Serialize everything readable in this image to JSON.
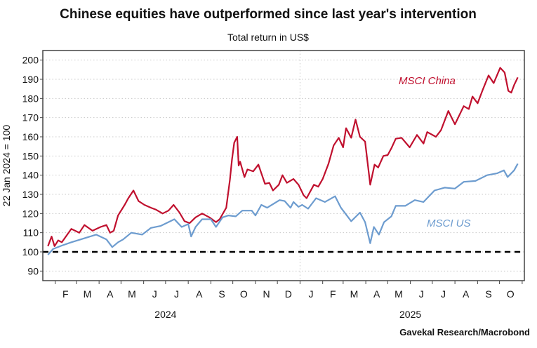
{
  "chart_data": {
    "type": "line",
    "title": "Chinese equities have outperformed since last year's intervention",
    "subtitle": "Total return in US$",
    "ylabel": "22 Jan 2024 = 100",
    "xlabel": "",
    "ylim": [
      85,
      205
    ],
    "xlim": [
      "2024-01-15",
      "2025-11-04"
    ],
    "yticks": [
      90,
      100,
      110,
      120,
      130,
      140,
      150,
      160,
      170,
      180,
      190,
      200
    ],
    "xtick_months": [
      {
        "label": "F",
        "date": "2024-02-15"
      },
      {
        "label": "M",
        "date": "2024-03-16"
      },
      {
        "label": "A",
        "date": "2024-04-16"
      },
      {
        "label": "M",
        "date": "2024-05-16"
      },
      {
        "label": "J",
        "date": "2024-06-16"
      },
      {
        "label": "J",
        "date": "2024-07-16"
      },
      {
        "label": "A",
        "date": "2024-08-16"
      },
      {
        "label": "S",
        "date": "2024-09-16"
      },
      {
        "label": "O",
        "date": "2024-10-16"
      },
      {
        "label": "N",
        "date": "2024-11-16"
      },
      {
        "label": "D",
        "date": "2024-12-16"
      },
      {
        "label": "J",
        "date": "2025-01-16"
      },
      {
        "label": "F",
        "date": "2025-02-15"
      },
      {
        "label": "M",
        "date": "2025-03-16"
      },
      {
        "label": "A",
        "date": "2025-04-16"
      },
      {
        "label": "M",
        "date": "2025-05-16"
      },
      {
        "label": "J",
        "date": "2025-06-16"
      },
      {
        "label": "J",
        "date": "2025-07-16"
      },
      {
        "label": "A",
        "date": "2025-08-16"
      },
      {
        "label": "S",
        "date": "2025-09-16"
      },
      {
        "label": "O",
        "date": "2025-10-16"
      }
    ],
    "month_boundaries": [
      "2024-02-01",
      "2024-03-01",
      "2024-04-01",
      "2024-05-01",
      "2024-06-01",
      "2024-07-01",
      "2024-08-01",
      "2024-09-01",
      "2024-10-01",
      "2024-11-01",
      "2024-12-01",
      "2025-01-01",
      "2025-02-01",
      "2025-03-01",
      "2025-04-01",
      "2025-05-01",
      "2025-06-01",
      "2025-07-01",
      "2025-08-01",
      "2025-09-01",
      "2025-10-01",
      "2025-11-01"
    ],
    "year_labels": [
      {
        "label": "2024",
        "date": "2024-07-01"
      },
      {
        "label": "2025",
        "date": "2025-06-01"
      }
    ],
    "year_divider": "2025-01-01",
    "reference_line": {
      "value": 100,
      "style": "dashed",
      "color": "#000000"
    },
    "grid": "horizontal-dotted",
    "legend": "inline-labels",
    "series": [
      {
        "name": "MSCI China",
        "color": "#c0102e",
        "label_position": "top-right",
        "points": [
          [
            "2024-01-22",
            103
          ],
          [
            "2024-01-27",
            108
          ],
          [
            "2024-01-31",
            103
          ],
          [
            "2024-02-05",
            106
          ],
          [
            "2024-02-10",
            105
          ],
          [
            "2024-02-23",
            112
          ],
          [
            "2024-03-05",
            110
          ],
          [
            "2024-03-12",
            114
          ],
          [
            "2024-03-23",
            111
          ],
          [
            "2024-04-03",
            113
          ],
          [
            "2024-04-11",
            114
          ],
          [
            "2024-04-16",
            110
          ],
          [
            "2024-04-21",
            111
          ],
          [
            "2024-04-27",
            119
          ],
          [
            "2024-05-06",
            124.5
          ],
          [
            "2024-05-11",
            128
          ],
          [
            "2024-05-18",
            132
          ],
          [
            "2024-05-25",
            126.5
          ],
          [
            "2024-06-02",
            124.5
          ],
          [
            "2024-06-11",
            123
          ],
          [
            "2024-06-18",
            122
          ],
          [
            "2024-06-27",
            120
          ],
          [
            "2024-07-05",
            121.5
          ],
          [
            "2024-07-12",
            124.5
          ],
          [
            "2024-07-20",
            120.5
          ],
          [
            "2024-07-27",
            116
          ],
          [
            "2024-08-03",
            115
          ],
          [
            "2024-08-11",
            118
          ],
          [
            "2024-08-20",
            120
          ],
          [
            "2024-08-30",
            118
          ],
          [
            "2024-09-08",
            115.5
          ],
          [
            "2024-09-13",
            117
          ],
          [
            "2024-09-22",
            123
          ],
          [
            "2024-09-27",
            137.5
          ],
          [
            "2024-09-30",
            148.5
          ],
          [
            "2024-10-03",
            157
          ],
          [
            "2024-10-07",
            160
          ],
          [
            "2024-10-09",
            145
          ],
          [
            "2024-10-11",
            147
          ],
          [
            "2024-10-17",
            139
          ],
          [
            "2024-10-21",
            143
          ],
          [
            "2024-10-29",
            142
          ],
          [
            "2024-11-05",
            145.5
          ],
          [
            "2024-11-14",
            135.5
          ],
          [
            "2024-11-20",
            136
          ],
          [
            "2024-11-25",
            132
          ],
          [
            "2024-12-03",
            135
          ],
          [
            "2024-12-08",
            140
          ],
          [
            "2024-12-14",
            136
          ],
          [
            "2024-12-23",
            138
          ],
          [
            "2024-12-30",
            135
          ],
          [
            "2025-01-06",
            129.5
          ],
          [
            "2025-01-10",
            128
          ],
          [
            "2025-01-20",
            135
          ],
          [
            "2025-01-26",
            134
          ],
          [
            "2025-02-01",
            138
          ],
          [
            "2025-02-09",
            146
          ],
          [
            "2025-02-16",
            155.5
          ],
          [
            "2025-02-23",
            159.5
          ],
          [
            "2025-03-01",
            154.5
          ],
          [
            "2025-03-05",
            164.5
          ],
          [
            "2025-03-12",
            159.5
          ],
          [
            "2025-03-18",
            169
          ],
          [
            "2025-03-24",
            160
          ],
          [
            "2025-03-31",
            157.5
          ],
          [
            "2025-04-07",
            135
          ],
          [
            "2025-04-13",
            145.5
          ],
          [
            "2025-04-18",
            144
          ],
          [
            "2025-04-25",
            150
          ],
          [
            "2025-05-01",
            150.5
          ],
          [
            "2025-05-06",
            154
          ],
          [
            "2025-05-12",
            159
          ],
          [
            "2025-05-20",
            159.5
          ],
          [
            "2025-05-31",
            154.5
          ],
          [
            "2025-06-10",
            161
          ],
          [
            "2025-06-19",
            156.5
          ],
          [
            "2025-06-24",
            162.5
          ],
          [
            "2025-07-06",
            160
          ],
          [
            "2025-07-13",
            163.5
          ],
          [
            "2025-07-23",
            173.5
          ],
          [
            "2025-08-01",
            166.5
          ],
          [
            "2025-08-13",
            176
          ],
          [
            "2025-08-20",
            174.5
          ],
          [
            "2025-08-25",
            181
          ],
          [
            "2025-09-01",
            177.5
          ],
          [
            "2025-09-08",
            184.5
          ],
          [
            "2025-09-16",
            192
          ],
          [
            "2025-09-23",
            188
          ],
          [
            "2025-10-02",
            196
          ],
          [
            "2025-10-08",
            193.5
          ],
          [
            "2025-10-13",
            184
          ],
          [
            "2025-10-17",
            183
          ],
          [
            "2025-10-21",
            187
          ],
          [
            "2025-10-26",
            191
          ]
        ]
      },
      {
        "name": "MSCI US",
        "color": "#6d9ccf",
        "label_position": "right",
        "points": [
          [
            "2024-01-22",
            98.5
          ],
          [
            "2024-01-29",
            101.5
          ],
          [
            "2024-02-10",
            103.3
          ],
          [
            "2024-02-23",
            105
          ],
          [
            "2024-03-07",
            106.5
          ],
          [
            "2024-03-28",
            109
          ],
          [
            "2024-04-11",
            106.5
          ],
          [
            "2024-04-19",
            102.5
          ],
          [
            "2024-04-27",
            105
          ],
          [
            "2024-05-04",
            106.5
          ],
          [
            "2024-05-15",
            110
          ],
          [
            "2024-05-30",
            109
          ],
          [
            "2024-06-11",
            112.5
          ],
          [
            "2024-06-24",
            113.5
          ],
          [
            "2024-07-13",
            117
          ],
          [
            "2024-07-23",
            113
          ],
          [
            "2024-08-01",
            114.5
          ],
          [
            "2024-08-05",
            108
          ],
          [
            "2024-08-11",
            113
          ],
          [
            "2024-08-20",
            117
          ],
          [
            "2024-09-01",
            117
          ],
          [
            "2024-09-08",
            113
          ],
          [
            "2024-09-17",
            118
          ],
          [
            "2024-09-25",
            119
          ],
          [
            "2024-10-05",
            118.5
          ],
          [
            "2024-10-14",
            121.5
          ],
          [
            "2024-10-27",
            121.5
          ],
          [
            "2024-11-01",
            119
          ],
          [
            "2024-11-09",
            124.5
          ],
          [
            "2024-11-17",
            123
          ],
          [
            "2024-12-04",
            127
          ],
          [
            "2024-12-11",
            126.5
          ],
          [
            "2024-12-19",
            123
          ],
          [
            "2024-12-23",
            126
          ],
          [
            "2024-12-30",
            123.5
          ],
          [
            "2025-01-04",
            124.5
          ],
          [
            "2025-01-12",
            122.5
          ],
          [
            "2025-01-23",
            128
          ],
          [
            "2025-02-04",
            126
          ],
          [
            "2025-02-18",
            129
          ],
          [
            "2025-02-26",
            123
          ],
          [
            "2025-03-12",
            116
          ],
          [
            "2025-03-24",
            120.5
          ],
          [
            "2025-03-31",
            115.5
          ],
          [
            "2025-04-07",
            104.5
          ],
          [
            "2025-04-12",
            113
          ],
          [
            "2025-04-19",
            109
          ],
          [
            "2025-04-26",
            115.5
          ],
          [
            "2025-05-06",
            118.5
          ],
          [
            "2025-05-12",
            124
          ],
          [
            "2025-05-25",
            124
          ],
          [
            "2025-06-07",
            127
          ],
          [
            "2025-06-19",
            126
          ],
          [
            "2025-07-04",
            132
          ],
          [
            "2025-07-18",
            133.5
          ],
          [
            "2025-08-01",
            133
          ],
          [
            "2025-08-13",
            136.5
          ],
          [
            "2025-08-29",
            137
          ],
          [
            "2025-09-14",
            140
          ],
          [
            "2025-09-28",
            141
          ],
          [
            "2025-10-07",
            142.5
          ],
          [
            "2025-10-12",
            139
          ],
          [
            "2025-10-21",
            142.5
          ],
          [
            "2025-10-26",
            146
          ]
        ]
      }
    ],
    "source": "Gavekal Research/Macrobond"
  }
}
